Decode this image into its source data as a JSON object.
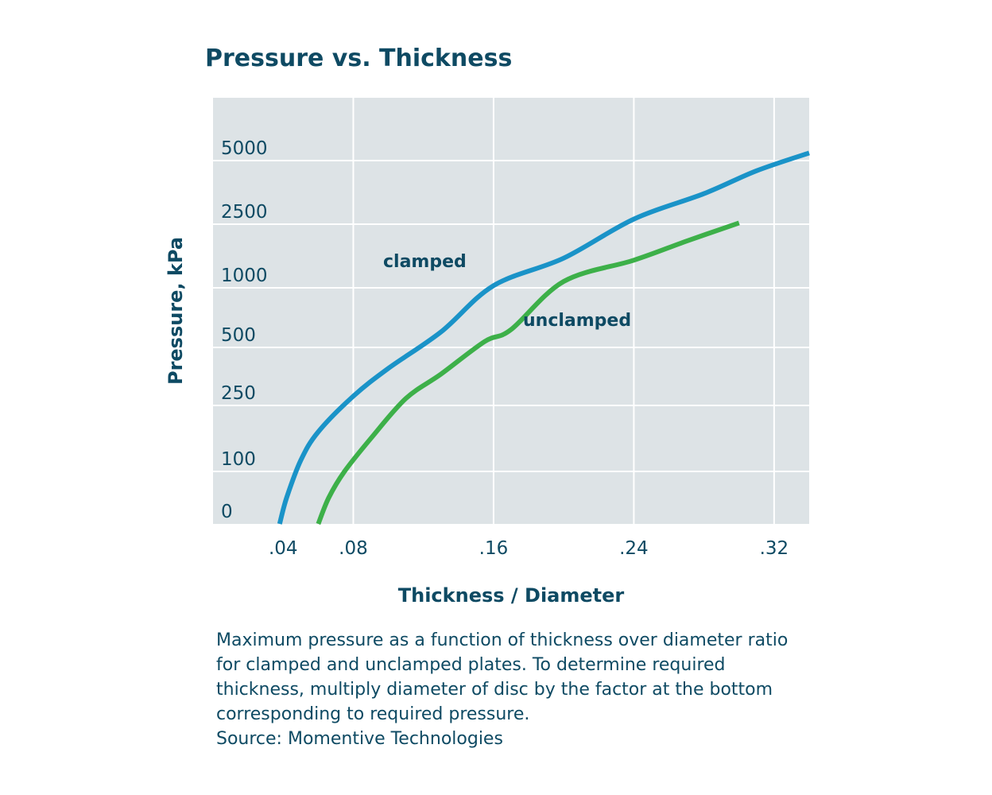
{
  "chart_data": {
    "type": "line",
    "title": "Pressure vs. Thickness",
    "xlabel": "Thickness / Diameter",
    "ylabel": "Pressure, kPa",
    "x_ticks": [
      ".04",
      ".08",
      ".16",
      ".24",
      ".32"
    ],
    "x_tick_values": [
      0.04,
      0.08,
      0.16,
      0.24,
      0.32
    ],
    "y_ticks": [
      "0",
      "100",
      "250",
      "500",
      "1000",
      "2500",
      "5000"
    ],
    "y_tick_values": [
      0,
      100,
      250,
      500,
      1000,
      2500,
      5000
    ],
    "xlim": [
      0.0,
      0.34
    ],
    "grid": true,
    "legend": "inline labels",
    "series": [
      {
        "name": "clamped",
        "color": "#1a93c8",
        "points": [
          [
            0.038,
            0
          ],
          [
            0.042,
            50
          ],
          [
            0.05,
            125
          ],
          [
            0.06,
            190
          ],
          [
            0.08,
            290
          ],
          [
            0.1,
            410
          ],
          [
            0.13,
            630
          ],
          [
            0.16,
            1050
          ],
          [
            0.2,
            1700
          ],
          [
            0.24,
            2700
          ],
          [
            0.28,
            3700
          ],
          [
            0.31,
            4600
          ],
          [
            0.34,
            5300
          ]
        ]
      },
      {
        "name": "unclamped",
        "color": "#3db049",
        "points": [
          [
            0.06,
            0
          ],
          [
            0.066,
            50
          ],
          [
            0.075,
            100
          ],
          [
            0.09,
            175
          ],
          [
            0.11,
            280
          ],
          [
            0.13,
            385
          ],
          [
            0.155,
            550
          ],
          [
            0.17,
            650
          ],
          [
            0.2,
            1150
          ],
          [
            0.24,
            1650
          ],
          [
            0.27,
            2100
          ],
          [
            0.3,
            2550
          ]
        ]
      }
    ],
    "caption": {
      "lines": [
        "Maximum pressure as a function of thickness over diameter ratio",
        "for clamped and unclamped plates.  To determine required",
        "thickness, multiply diameter of disc by the factor at the bottom",
        "corresponding to required pressure.",
        "Source: Momentive Technologies"
      ]
    }
  }
}
